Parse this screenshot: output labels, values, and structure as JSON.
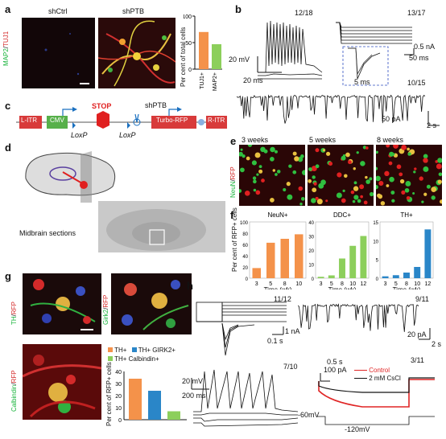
{
  "panels": {
    "a": {
      "letter": "a",
      "sh_ctrl": "shCtrl",
      "sh_ptb": "shPTB",
      "stain_red": "TUJ1",
      "stain_green": "MAP2",
      "ylabel": "Per cent of total cells",
      "chart_data": {
        "type": "bar",
        "categories": [
          "TUJ1+",
          "MAP2+"
        ],
        "values": [
          70,
          47
        ],
        "colors": [
          "#f4924a",
          "#8ccf5b"
        ],
        "ylim": [
          0,
          100
        ],
        "yticks": [
          0,
          50,
          100
        ]
      }
    },
    "b": {
      "letter": "b",
      "ratio1": "12/18",
      "ratio2": "13/17",
      "ratio3": "10/15",
      "scale1v": "20 mV",
      "scale1t": "20 ms",
      "scale2i": "0.5 nA",
      "scale2t": "50 ms",
      "scale3t": "5 ms",
      "scale4i": "50 pA",
      "scale4t": "2 s"
    },
    "c": {
      "letter": "c",
      "boxes": [
        "L-ITR",
        "CMV",
        "STOP",
        "shPTB",
        "Turbo-RFP",
        "R-ITR"
      ],
      "loxp1": "LoxP",
      "loxp2": "LoxP"
    },
    "d": {
      "letter": "d",
      "caption": "Midbrain sections"
    },
    "e": {
      "letter": "e",
      "times": [
        "3 weeks",
        "5 weeks",
        "8 weeks"
      ],
      "stain_green": "NeuN",
      "stain_red": "RFP"
    },
    "f": {
      "letter": "f",
      "ylabel": "Per cent of RFP+ cells",
      "xlabel": "Time (wk)",
      "chart_data": [
        {
          "type": "bar",
          "title": "NeuN+",
          "categories": [
            "3",
            "5",
            "8",
            "10"
          ],
          "values": [
            18,
            63,
            70,
            78
          ],
          "color": "#f4924a",
          "ylim": [
            0,
            100
          ],
          "yticks": [
            0,
            20,
            40,
            60,
            80,
            100
          ]
        },
        {
          "type": "bar",
          "title": "DDC+",
          "categories": [
            "3",
            "5",
            "8",
            "10",
            "12"
          ],
          "values": [
            1,
            2,
            14,
            23,
            30
          ],
          "color": "#8ccf5b",
          "ylim": [
            0,
            40
          ],
          "yticks": [
            0,
            10,
            20,
            30,
            40
          ]
        },
        {
          "type": "bar",
          "title": "TH+",
          "categories": [
            "3",
            "5",
            "8",
            "10",
            "12"
          ],
          "values": [
            0.5,
            0.8,
            1.5,
            3,
            13
          ],
          "color": "#2a86c8",
          "ylim": [
            0,
            15
          ],
          "yticks": [
            0,
            5,
            10,
            15
          ]
        }
      ]
    },
    "g": {
      "letter": "g",
      "stain1": "TH",
      "stain2": "Girk2",
      "stain3": "Calbindin",
      "stain_red": "RFP",
      "ylabel": "Per cent of RFP+ cells",
      "chart_data": {
        "type": "bar",
        "categories": [
          "TH+",
          "TH+ GIRK2+",
          "TH+ Calbindin+"
        ],
        "values": [
          34,
          24,
          7
        ],
        "colors": [
          "#f4924a",
          "#2a86c8",
          "#8ccf5b"
        ],
        "ylim": [
          0,
          40
        ],
        "yticks": [
          0,
          10,
          20,
          30,
          40
        ]
      }
    },
    "h": {
      "letter": "h",
      "ratio1": "11/12",
      "ratio2": "9/11",
      "ratio3": "7/10",
      "ratio4": "3/11",
      "scale1i": "1 nA",
      "scale1t": "0.1 s",
      "scale2i": "20 pA",
      "scale2t": "2 s",
      "scale3v": "20 mV",
      "scale3t": "200 ms",
      "scale4t": "0.5 s",
      "scale4i": "100 pA",
      "legend1": "Control",
      "legend2": "2 mM CsCl",
      "v1": "-60mV",
      "v2": "-120mV"
    }
  },
  "colors": {
    "orange": "#f4924a",
    "green": "#8ccf5b",
    "blue": "#2a86c8",
    "red": "#e02525"
  }
}
